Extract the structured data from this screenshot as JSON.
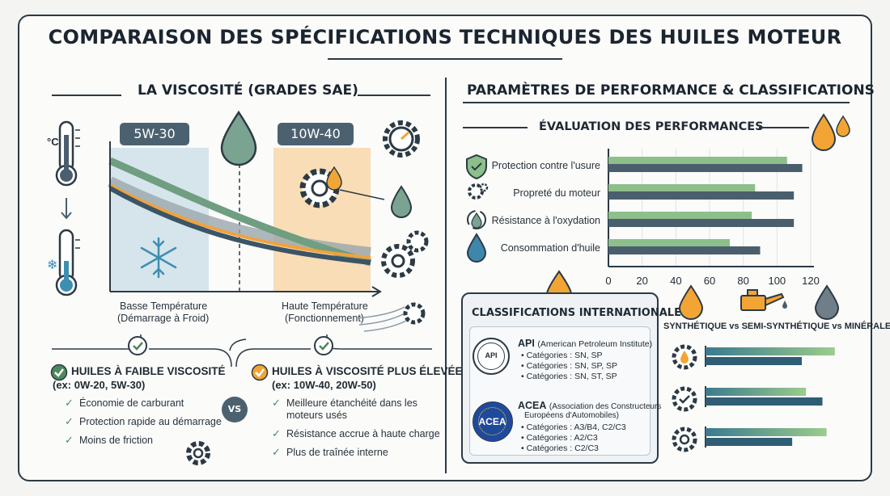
{
  "title": "COMPARAISON DES SPÉCIFICATIONS TECHNIQUES DES HUILES MOTEUR",
  "left": {
    "section_title": "LA VISCOSITÉ (GRADES SAE)",
    "grade_low": "5W-30",
    "grade_high": "10W-40",
    "temp_unit": "°C",
    "low_temp_line1": "Basse Température",
    "low_temp_line2": "(Démarrage à Froid)",
    "high_temp_line1": "Haute Température",
    "high_temp_line2": "(Fonctionnement)",
    "low_visc": {
      "title": "HUILES À FAIBLE VISCOSITÉ",
      "example": "(ex: 0W-20, 5W-30)",
      "items": [
        "Économie de carburant",
        "Protection rapide au démarrage",
        "Moins de friction"
      ]
    },
    "vs": "VS",
    "high_visc": {
      "title": "HUILES À VISCOSITÉ PLUS ÉLEVÉE",
      "example": "(ex: 10W-40, 20W-50)",
      "items": [
        "Meilleure étanchéité dans les",
        "moteurs usés",
        "Résistance accrue à haute charge",
        "Plus de traînée interne"
      ]
    }
  },
  "right": {
    "section_title": "PARAMÈTRES DE PERFORMANCE & CLASSIFICATIONS",
    "perf_title": "ÉVALUATION DES PERFORMANCES",
    "classif": {
      "title": "CLASSIFICATIONS INTERNATIONALES",
      "api_seal": "API",
      "api_title": "API",
      "api_sub": "(American Petroleum Institute)",
      "api_items": [
        "• Catégories : SN, SP",
        "• Catégories : SN, SP, SP",
        "• Catégories : SN, ST, SP"
      ],
      "acea_logo": "ACEA",
      "acea_title": "ACEA",
      "acea_sub1": "(Association des Constructeurs",
      "acea_sub2": "Européens d'Automobiles)",
      "acea_items": [
        "• Catégories : A3/B4, C2/C3",
        "• Catégories : A2/C3",
        "• Catégories : C2/C3"
      ]
    },
    "types_label": "SYNTHÉTIQUE vs SEMI-SYNTHÉTIQUE vs MINÉRALE"
  },
  "chart_data": [
    {
      "type": "bar",
      "categories": [
        "Protection contre l'usure",
        "Propreté du moteur",
        "Résistance à l'oxydation",
        "Consommation d'huile"
      ],
      "series": [
        {
          "values": [
            106,
            87,
            85,
            72
          ]
        },
        {
          "values": [
            115,
            110,
            110,
            90
          ]
        }
      ],
      "xlim": [
        0,
        120
      ],
      "xticks": [
        "0",
        "20",
        "40",
        "60",
        "80",
        "100",
        "120"
      ],
      "grid": true
    },
    {
      "type": "bar",
      "categories": [
        "",
        "",
        ""
      ],
      "series": [
        {
          "values": [
            0.94,
            0.73,
            0.88
          ]
        },
        {
          "values": [
            0.7,
            0.85,
            0.63
          ]
        }
      ]
    }
  ],
  "colors": {
    "green": "#8dbf8a",
    "slate": "#4a5e6d",
    "blue_slate": "#2f6f8c",
    "orange": "#f2a534",
    "navy": "#233846"
  }
}
